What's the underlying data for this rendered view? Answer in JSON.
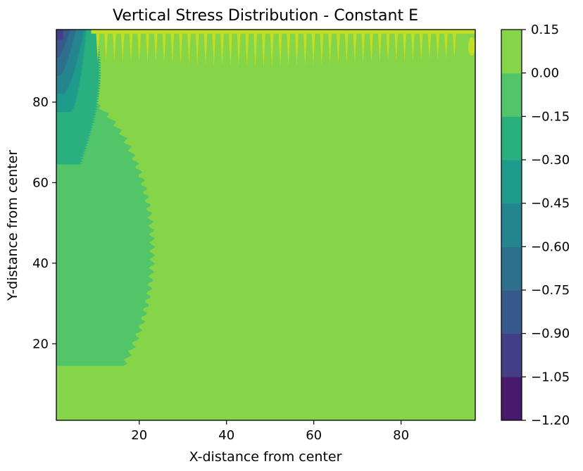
{
  "chart_data": {
    "type": "contourf",
    "title": "Vertical Stress Distribution - Constant E",
    "xlabel": "X-distance from center",
    "ylabel": "Y-distance from center",
    "xlim": [
      1,
      97
    ],
    "ylim": [
      1,
      98
    ],
    "x_ticks": [
      20,
      40,
      60,
      80
    ],
    "y_ticks": [
      20,
      40,
      60,
      80
    ],
    "grid": false,
    "colormap": "viridis",
    "colorbar": {
      "levels": [
        -1.2,
        -1.05,
        -0.9,
        -0.75,
        -0.6,
        -0.45,
        -0.3,
        -0.15,
        0.0,
        0.15
      ],
      "tick_labels": [
        "−1.20",
        "−1.05",
        "−0.90",
        "−0.75",
        "−0.60",
        "−0.45",
        "−0.30",
        "−0.15",
        "0.00",
        "0.15"
      ],
      "colors": [
        "#481a6c",
        "#433e85",
        "#38598c",
        "#2d708e",
        "#25858e",
        "#1e9b8a",
        "#2ab07f",
        "#52c569",
        "#86d549",
        "#c2df23"
      ]
    },
    "regions": [
      {
        "band": "-0.15 to 0.00",
        "description": "background field",
        "color": "#86d549"
      },
      {
        "band": "-0.30 to -0.15",
        "x_extent": [
          1,
          23
        ],
        "y_extent": [
          15,
          88
        ],
        "color": "#52c569"
      },
      {
        "band": "-0.45 to -0.30",
        "x_extent": [
          1,
          11
        ],
        "y_extent": [
          65,
          97
        ],
        "color": "#2ab07f"
      },
      {
        "band": "-0.60 to -0.45",
        "x_extent": [
          1,
          9
        ],
        "y_extent": [
          78,
          98
        ],
        "color": "#1e9b8a"
      },
      {
        "band": "-0.75 to -0.60",
        "x_extent": [
          1,
          8
        ],
        "y_extent": [
          82,
          98
        ],
        "color": "#2d708e"
      },
      {
        "band": "-0.90 to -0.75",
        "x_extent": [
          1,
          6
        ],
        "y_extent": [
          87,
          98
        ],
        "color": "#38598c"
      },
      {
        "band": "-1.05 to -0.90",
        "x_extent": [
          1,
          5
        ],
        "y_extent": [
          91,
          98
        ],
        "color": "#433e85"
      },
      {
        "band": "0.00 to 0.15",
        "description": "spikes along top edge",
        "x_extent": [
          8,
          97
        ],
        "y_extent": [
          90,
          98
        ],
        "color": "#c2df23"
      }
    ]
  }
}
